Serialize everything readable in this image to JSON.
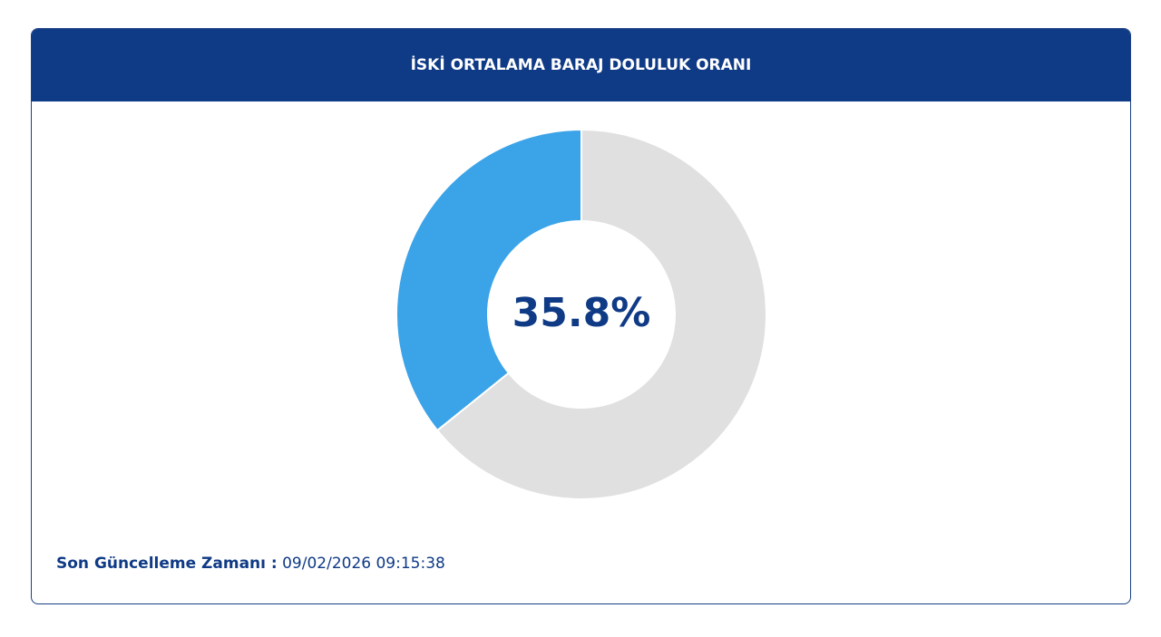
{
  "chart_data": {
    "type": "pie",
    "title": "İSKİ ORTALAMA BARAJ DOLULUK ORANI",
    "values": [
      35.8,
      64.2
    ],
    "value_labels": [
      "35.8%",
      null
    ],
    "colors": [
      "#3ba3e8",
      "#e0e0e0"
    ],
    "donut": true
  },
  "footer": {
    "label": "Son Güncelleme Zamanı :",
    "value": "09/02/2026 09:15:38"
  }
}
